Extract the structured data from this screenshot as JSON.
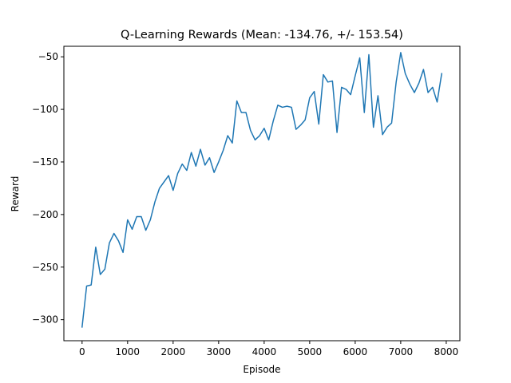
{
  "chart_data": {
    "type": "line",
    "title": "Q-Learning Rewards (Mean: -134.76, +/- 153.54)",
    "xlabel": "Episode",
    "ylabel": "Reward",
    "xlim": [
      -400,
      8300
    ],
    "ylim": [
      -320,
      -40
    ],
    "xticks": [
      0,
      1000,
      2000,
      3000,
      4000,
      5000,
      6000,
      7000,
      8000
    ],
    "yticks": [
      -300,
      -250,
      -200,
      -150,
      -100,
      -50
    ],
    "grid": false,
    "legend": "none",
    "series": [
      {
        "color": "#1f77b4",
        "x": [
          0,
          100,
          200,
          300,
          400,
          500,
          600,
          700,
          800,
          900,
          1000,
          1100,
          1200,
          1300,
          1400,
          1500,
          1600,
          1700,
          1800,
          1900,
          2000,
          2100,
          2200,
          2300,
          2400,
          2500,
          2600,
          2700,
          2800,
          2900,
          3000,
          3100,
          3200,
          3300,
          3400,
          3500,
          3600,
          3700,
          3800,
          3900,
          4000,
          4100,
          4200,
          4300,
          4400,
          4500,
          4600,
          4700,
          4800,
          4900,
          5000,
          5100,
          5200,
          5300,
          5400,
          5500,
          5600,
          5700,
          5800,
          5900,
          6000,
          6100,
          6200,
          6300,
          6400,
          6500,
          6600,
          6700,
          6800,
          6900,
          7000,
          7100,
          7200,
          7300,
          7400,
          7500,
          7600,
          7700,
          7800,
          7900
        ],
        "y": [
          -307,
          -268,
          -267,
          -231,
          -257,
          -252,
          -227,
          -218,
          -225,
          -236,
          -205,
          -214,
          -202,
          -202,
          -215,
          -205,
          -188,
          -175,
          -169,
          -163,
          -177,
          -161,
          -152,
          -158,
          -141,
          -154,
          -138,
          -153,
          -146,
          -160,
          -150,
          -139,
          -125,
          -132,
          -92,
          -103,
          -103,
          -120,
          -129,
          -125,
          -118,
          -129,
          -111,
          -96,
          -98,
          -97,
          -98,
          -119,
          -115,
          -110,
          -89,
          -83,
          -114,
          -67,
          -74,
          -73,
          -122,
          -79,
          -81,
          -86,
          -68,
          -51,
          -103,
          -48,
          -117,
          -87,
          -124,
          -117,
          -113,
          -74,
          -46,
          -66,
          -76,
          -84,
          -75,
          -62,
          -84,
          -79,
          -93,
          -66
        ]
      }
    ]
  }
}
